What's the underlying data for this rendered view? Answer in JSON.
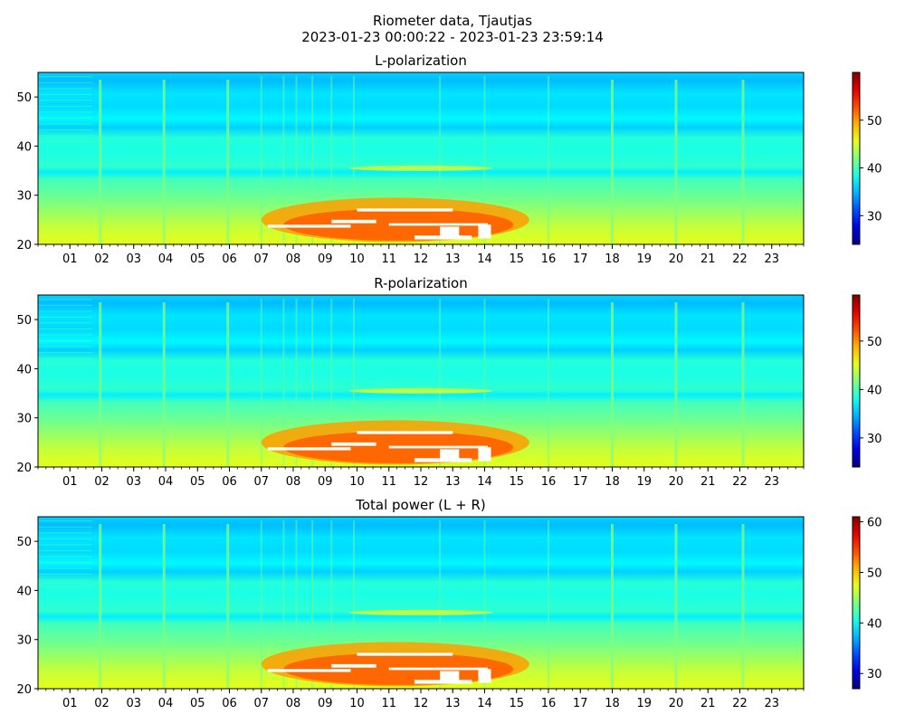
{
  "figure": {
    "title_line1": "Riometer data, Tjautjas",
    "title_line2": "2023-01-23 00:00:22 - 2023-01-23 23:59:14"
  },
  "chart_data": [
    {
      "type": "heatmap",
      "title": "L-polarization",
      "x_tick_labels": [
        "01",
        "02",
        "03",
        "04",
        "05",
        "06",
        "07",
        "08",
        "09",
        "10",
        "11",
        "12",
        "13",
        "14",
        "15",
        "16",
        "17",
        "18",
        "19",
        "20",
        "21",
        "22",
        "23"
      ],
      "xlim_hours": [
        0,
        24
      ],
      "y_ticks": [
        20,
        30,
        40,
        50
      ],
      "ylim": [
        20,
        55
      ],
      "colorbar": {
        "range": [
          24,
          60
        ],
        "ticks": [
          30,
          40,
          50
        ],
        "colormap": "jet"
      },
      "saturation_color": "#ffffff"
    },
    {
      "type": "heatmap",
      "title": "R-polarization",
      "x_tick_labels": [
        "01",
        "02",
        "03",
        "04",
        "05",
        "06",
        "07",
        "08",
        "09",
        "10",
        "11",
        "12",
        "13",
        "14",
        "15",
        "16",
        "17",
        "18",
        "19",
        "20",
        "21",
        "22",
        "23"
      ],
      "xlim_hours": [
        0,
        24
      ],
      "y_ticks": [
        20,
        30,
        40,
        50
      ],
      "ylim": [
        20,
        55
      ],
      "colorbar": {
        "range": [
          24,
          59.5
        ],
        "ticks": [
          30,
          40,
          50
        ],
        "colormap": "jet"
      },
      "saturation_color": "#ffffff"
    },
    {
      "type": "heatmap",
      "title": "Total power (L + R)",
      "x_tick_labels": [
        "01",
        "02",
        "03",
        "04",
        "05",
        "06",
        "07",
        "08",
        "09",
        "10",
        "11",
        "12",
        "13",
        "14",
        "15",
        "16",
        "17",
        "18",
        "19",
        "20",
        "21",
        "22",
        "23"
      ],
      "xlim_hours": [
        0,
        24
      ],
      "y_ticks": [
        20,
        30,
        40,
        50
      ],
      "ylim": [
        20,
        55
      ],
      "colorbar": {
        "range": [
          27,
          61
        ],
        "ticks": [
          30,
          40,
          50,
          60
        ],
        "colormap": "jet"
      },
      "saturation_color": "#ffffff"
    }
  ]
}
